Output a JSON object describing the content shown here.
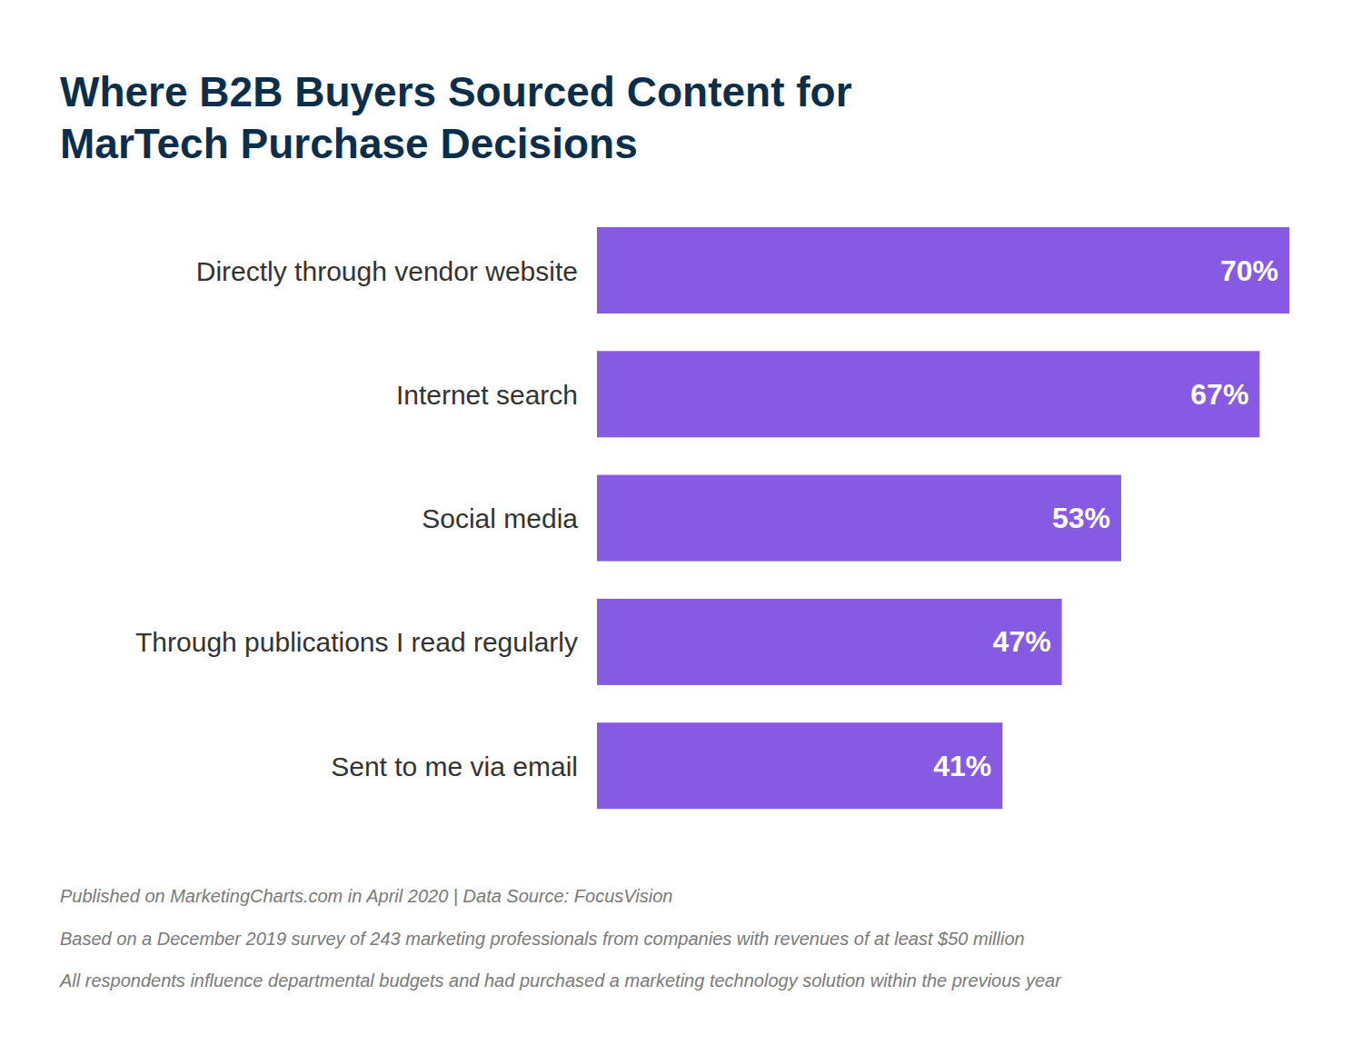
{
  "chart_data": {
    "type": "bar",
    "orientation": "horizontal",
    "title": "Where B2B Buyers Sourced Content for MarTech Purchase Decisions",
    "categories": [
      "Directly through vendor website",
      "Internet search",
      "Social media",
      "Through publications I read regularly",
      "Sent to me via email"
    ],
    "values": [
      70,
      67,
      53,
      47,
      41
    ],
    "value_labels": [
      "70%",
      "67%",
      "53%",
      "47%",
      "41%"
    ],
    "data_labels": true,
    "color": "#875ae3",
    "xlim": [
      0,
      70
    ],
    "tick_labels": false,
    "grid": false,
    "footnotes": [
      "Published on MarketingCharts.com in April 2020 | Data Source: FocusVision",
      "Based on a December 2019 survey of 243 marketing professionals from companies with revenues of at least $50 million",
      "All respondents influence departmental budgets and had purchased a marketing technology solution within the previous year"
    ]
  }
}
